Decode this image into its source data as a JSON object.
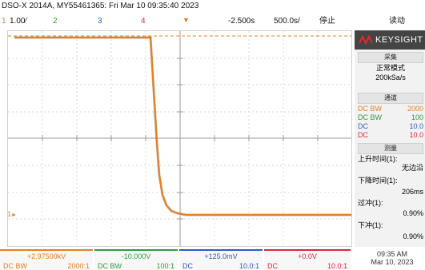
{
  "header": {
    "instrument": "DSO-X 2014A, MY55461365: Fri Mar 10 09:35:40 2023",
    "channels": [
      {
        "num": "1",
        "scale": "1.00∕",
        "color": "#e67e22"
      },
      {
        "num": "2",
        "color": "#2e9b3f"
      },
      {
        "num": "3",
        "color": "#2c5bbf"
      },
      {
        "num": "4",
        "color": "#d7263d"
      }
    ],
    "time_offset": "-2.500s",
    "time_div": "500.0s/",
    "run_state": "停止",
    "read_mode": "读动"
  },
  "plot": {
    "ch1_label": "1",
    "trace_color": "#e67e22",
    "trace_shadow": "#8a5a2b",
    "trigger_level_color": "#e67e22"
  },
  "sidebar": {
    "logo": "KEYSIGHT",
    "acquire_title": "采集",
    "acquire_mode": "正常模式",
    "sample_rate": "200kSa/s",
    "channels_title": "通道",
    "channel_lines": [
      {
        "label": "DC BW",
        "value": "2000",
        "color": "#e67e22"
      },
      {
        "label": "DC BW",
        "value": "100",
        "color": "#2e9b3f"
      },
      {
        "label": "DC",
        "value": "10.0",
        "color": "#2c5bbf"
      },
      {
        "label": "DC",
        "value": "10.0",
        "color": "#d7263d"
      }
    ],
    "measure_title": "测量",
    "measurements": [
      {
        "label": "上升时间(1):",
        "value": "无边沿"
      },
      {
        "label": "下降时间(1):",
        "value": "206ms"
      },
      {
        "label": "过冲(1):",
        "value": "0.90%"
      },
      {
        "label": "下冲(1):",
        "value": "0.90%"
      }
    ]
  },
  "bottom": {
    "cells": [
      {
        "value": "+2.97500kV",
        "coupling": "DC  BW",
        "ratio": "2000:1",
        "color": "#e67e22"
      },
      {
        "value": "-10.000V",
        "coupling": "DC  BW",
        "ratio": "100:1",
        "color": "#2e9b3f"
      },
      {
        "value": "+125.0mV",
        "coupling": "DC",
        "ratio": "10.0:1",
        "color": "#2c5bbf"
      },
      {
        "value": "+0.0V",
        "coupling": "DC",
        "ratio": "10.0:1",
        "color": "#d7263d"
      }
    ],
    "time": "09:35 AM",
    "date": "Mar 10, 2023"
  }
}
